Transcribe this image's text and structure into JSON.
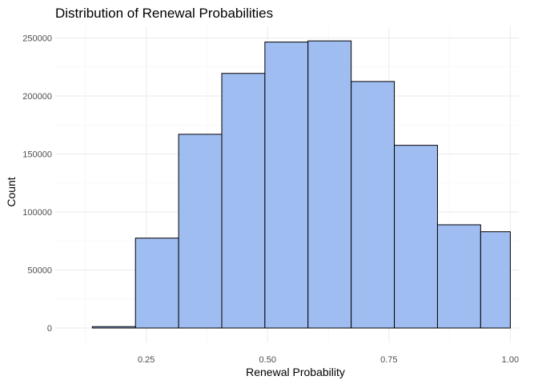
{
  "chart_data": {
    "type": "histogram",
    "title": "Distribution of Renewal Probabilities",
    "xlabel": "Renewal Probability",
    "ylabel": "Count",
    "xlim": [
      0.0625,
      1.0175
    ],
    "ylim": [
      -12400,
      260000
    ],
    "x_ticks": [
      0.25,
      0.5,
      0.75,
      1.0
    ],
    "x_tick_labels": [
      "0.25",
      "0.50",
      "0.75",
      "1.00"
    ],
    "x_minor_ticks": [
      0.125,
      0.375,
      0.625,
      0.875
    ],
    "y_ticks": [
      0,
      50000,
      100000,
      150000,
      200000,
      250000
    ],
    "y_tick_labels": [
      "0",
      "50000",
      "100000",
      "150000",
      "200000",
      "250000"
    ],
    "y_minor_ticks": [
      25000,
      75000,
      125000,
      175000,
      225000
    ],
    "bin_width": 0.0889,
    "bins": [
      {
        "x_start": 0.1389,
        "x_end": 0.2278,
        "count": 1200
      },
      {
        "x_start": 0.2278,
        "x_end": 0.3167,
        "count": 77500
      },
      {
        "x_start": 0.3167,
        "x_end": 0.4056,
        "count": 167000
      },
      {
        "x_start": 0.4056,
        "x_end": 0.4944,
        "count": 219500
      },
      {
        "x_start": 0.4944,
        "x_end": 0.5833,
        "count": 246500
      },
      {
        "x_start": 0.5833,
        "x_end": 0.6722,
        "count": 247500
      },
      {
        "x_start": 0.6722,
        "x_end": 0.7611,
        "count": 212500
      },
      {
        "x_start": 0.7611,
        "x_end": 0.85,
        "count": 157500
      },
      {
        "x_start": 0.85,
        "x_end": 0.9389,
        "count": 89000
      },
      {
        "x_start": 0.9389,
        "x_end": 1.0,
        "count": 83000
      }
    ],
    "fill_color": "#a0bdf2",
    "outline_color": "#000000",
    "grid": true,
    "background": "#ffffff",
    "legend": "none"
  }
}
